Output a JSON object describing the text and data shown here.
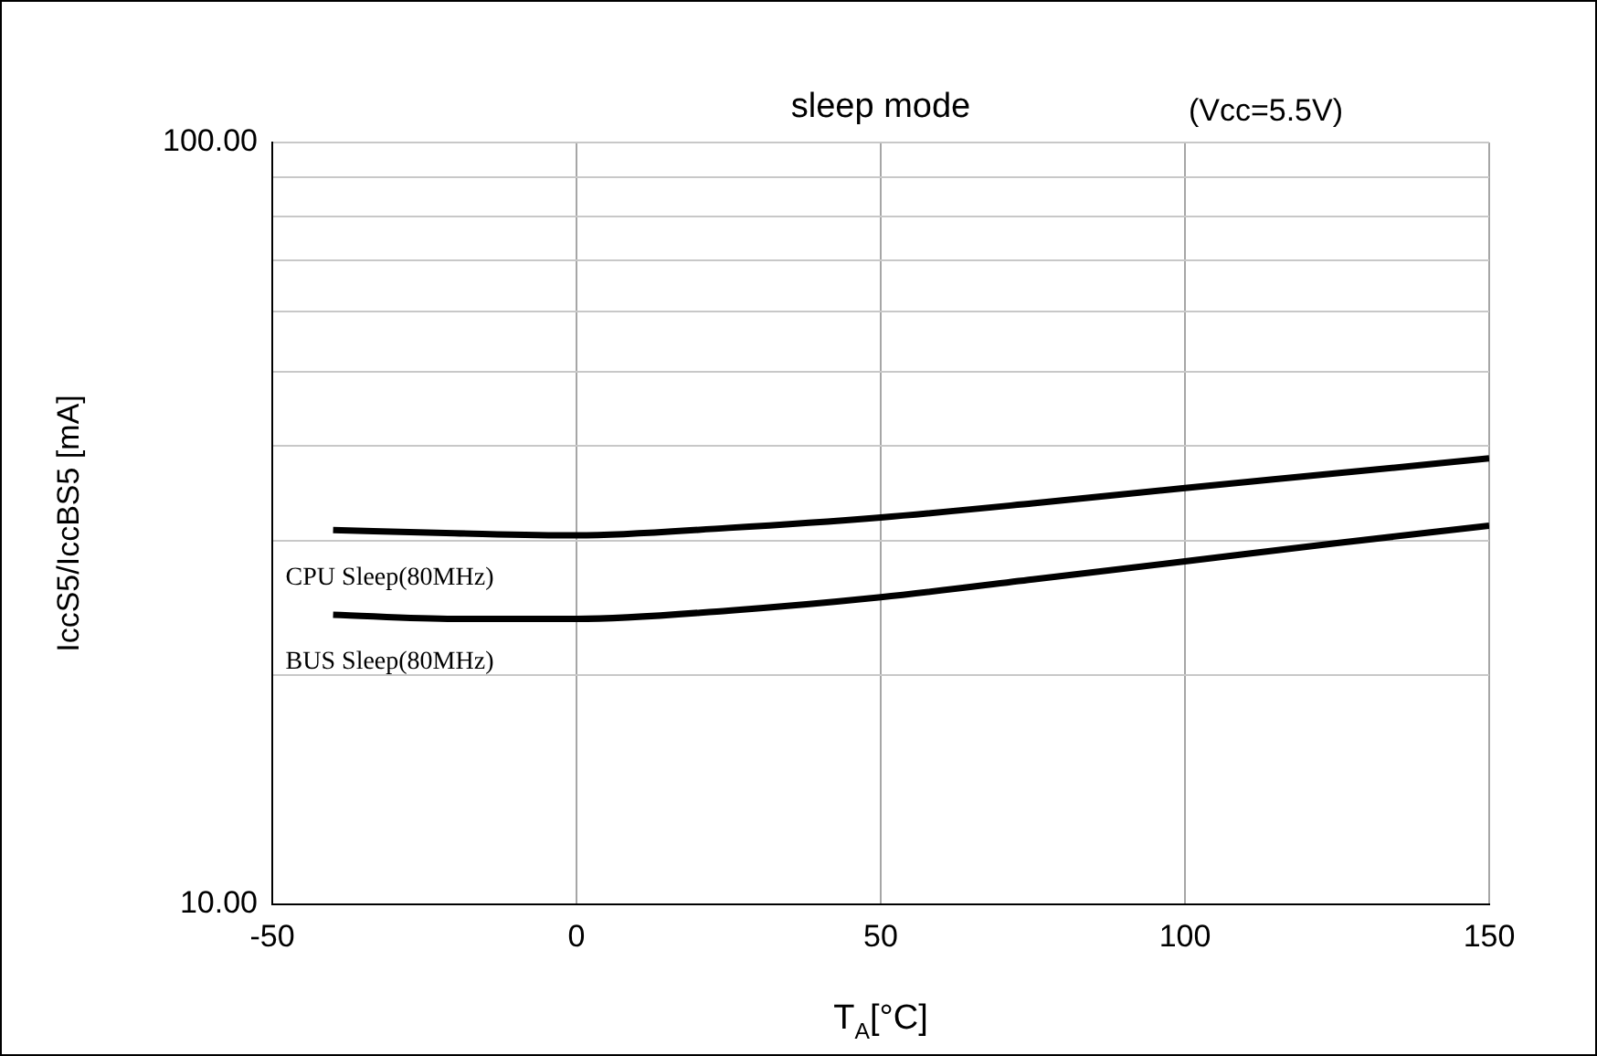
{
  "chart_data": {
    "type": "line",
    "title": "sleep mode",
    "xlabel": "T$_{A}$[°C]",
    "ylabel": "IccS5/IccBS5 [mA]",
    "annotations": [
      "(Vcc=5.5V)"
    ],
    "x": [
      -40,
      -20,
      0,
      25,
      50,
      75,
      100,
      125,
      150
    ],
    "series": [
      {
        "name": "CPU Sleep(80MHz)",
        "color": "#000000",
        "values": [
          31.0,
          30.7,
          30.5,
          31.2,
          32.2,
          33.6,
          35.2,
          36.8,
          38.5
        ]
      },
      {
        "name": "BUS Sleep(80MHz)",
        "color": "#000000",
        "values": [
          24.0,
          23.7,
          23.7,
          24.3,
          25.3,
          26.7,
          28.2,
          29.8,
          31.4
        ]
      }
    ],
    "log": "y",
    "xlim": [
      -50,
      150
    ],
    "xticks": [
      -50,
      0,
      50,
      100,
      150
    ],
    "ylim": [
      10,
      100
    ],
    "yticks": [
      {
        "value": 10,
        "label": "10.00"
      },
      {
        "value": 20,
        "label": null
      },
      {
        "value": 30,
        "label": null
      },
      {
        "value": 40,
        "label": null
      },
      {
        "value": 50,
        "label": null
      },
      {
        "value": 60,
        "label": null
      },
      {
        "value": 70,
        "label": null
      },
      {
        "value": 80,
        "label": null
      },
      {
        "value": 90,
        "label": null
      },
      {
        "value": 100,
        "label": "100.00"
      }
    ],
    "grid": true,
    "legend": false,
    "marker": "none",
    "line_style": "solid"
  }
}
